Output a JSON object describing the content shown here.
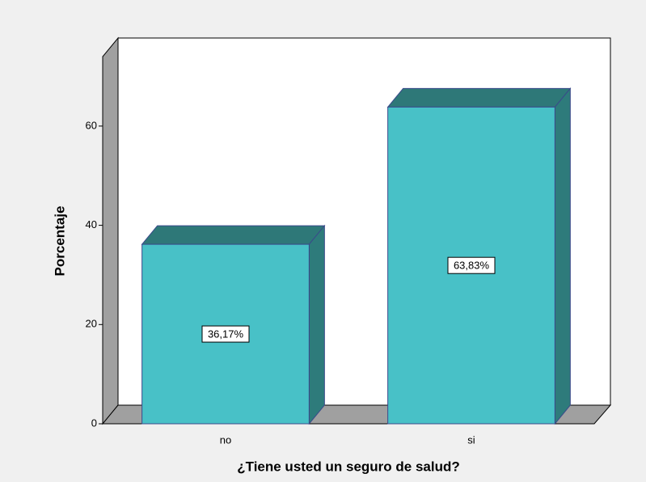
{
  "chart_data": {
    "type": "bar",
    "x_label": "¿Tiene usted un seguro de salud?",
    "y_label": "Porcentaje",
    "categories": [
      "no",
      "si"
    ],
    "values": [
      36.17,
      63.83
    ],
    "value_labels": [
      "36,17%",
      "63,83%"
    ],
    "color": "#48c1c7",
    "ylim": [
      0,
      74
    ],
    "yticks": [
      0,
      20,
      40,
      60
    ]
  }
}
